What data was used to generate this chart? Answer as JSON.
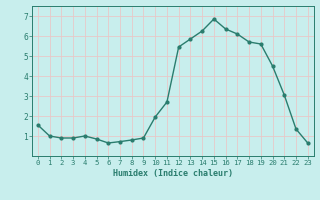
{
  "x": [
    0,
    1,
    2,
    3,
    4,
    5,
    6,
    7,
    8,
    9,
    10,
    11,
    12,
    13,
    14,
    15,
    16,
    17,
    18,
    19,
    20,
    21,
    22,
    23
  ],
  "y": [
    1.55,
    1.0,
    0.9,
    0.9,
    1.0,
    0.85,
    0.65,
    0.72,
    0.8,
    0.9,
    1.95,
    2.7,
    5.45,
    5.85,
    6.25,
    6.85,
    6.35,
    6.1,
    5.7,
    5.6,
    4.5,
    3.05,
    1.35,
    0.65
  ],
  "xlim": [
    -0.5,
    23.5
  ],
  "ylim": [
    0,
    7.5
  ],
  "yticks": [
    1,
    2,
    3,
    4,
    5,
    6,
    7
  ],
  "xticks": [
    0,
    1,
    2,
    3,
    4,
    5,
    6,
    7,
    8,
    9,
    10,
    11,
    12,
    13,
    14,
    15,
    16,
    17,
    18,
    19,
    20,
    21,
    22,
    23
  ],
  "xlabel": "Humidex (Indice chaleur)",
  "line_color": "#2a7d6e",
  "marker": "o",
  "marker_size": 2.0,
  "bg_color": "#c8eeed",
  "grid_color": "#e8c8c8",
  "grid_color_major": "#e8c8c8",
  "tick_color": "#2a7d6e",
  "label_color": "#2a7d6e",
  "line_width": 1.0,
  "xlabel_fontsize": 6.0,
  "tick_fontsize": 5.2
}
